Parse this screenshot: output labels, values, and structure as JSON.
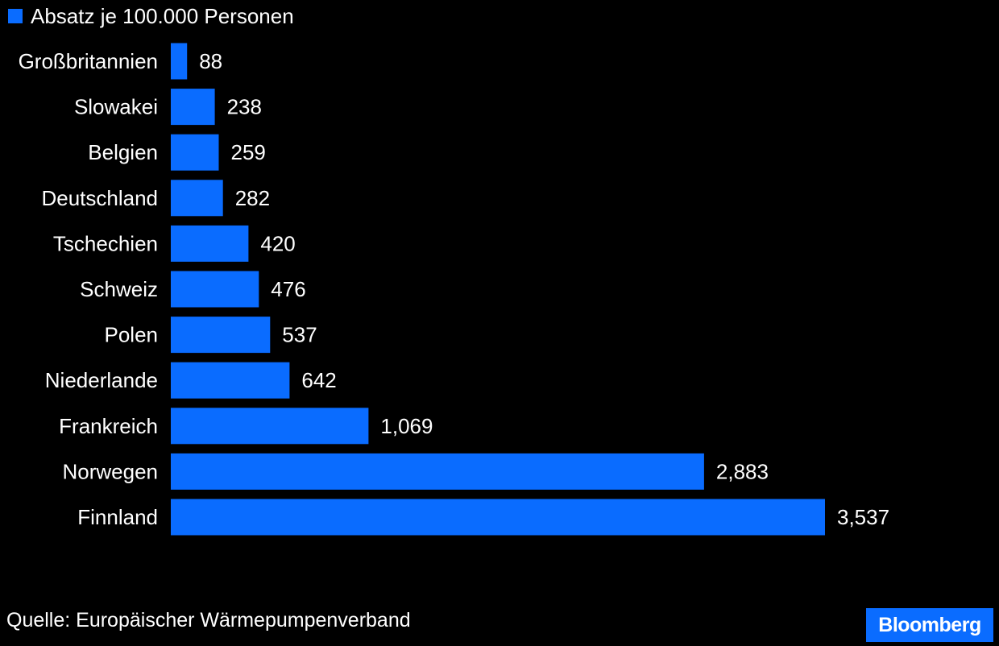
{
  "chart_data": {
    "type": "bar",
    "orientation": "horizontal",
    "categories": [
      "Großbritannien",
      "Slowakei",
      "Belgien",
      "Deutschland",
      "Tschechien",
      "Schweiz",
      "Polen",
      "Niederlande",
      "Frankreich",
      "Norwegen",
      "Finnland"
    ],
    "values": [
      88,
      238,
      259,
      282,
      420,
      476,
      537,
      642,
      1069,
      2883,
      3537
    ],
    "value_labels": [
      "88",
      "238",
      "259",
      "282",
      "420",
      "476",
      "537",
      "642",
      "1,069",
      "2,883",
      "3,537"
    ],
    "series": [
      {
        "name": "Absatz je 100.000 Personen",
        "color": "#0a6cff"
      }
    ],
    "legend_position": "top-left",
    "grid": false
  },
  "source": "Quelle: Europäischer Wärmepumpenverband",
  "brand": "Bloomberg",
  "colors": {
    "background": "#000000",
    "bar": "#0a6cff",
    "text": "#ffffff"
  }
}
